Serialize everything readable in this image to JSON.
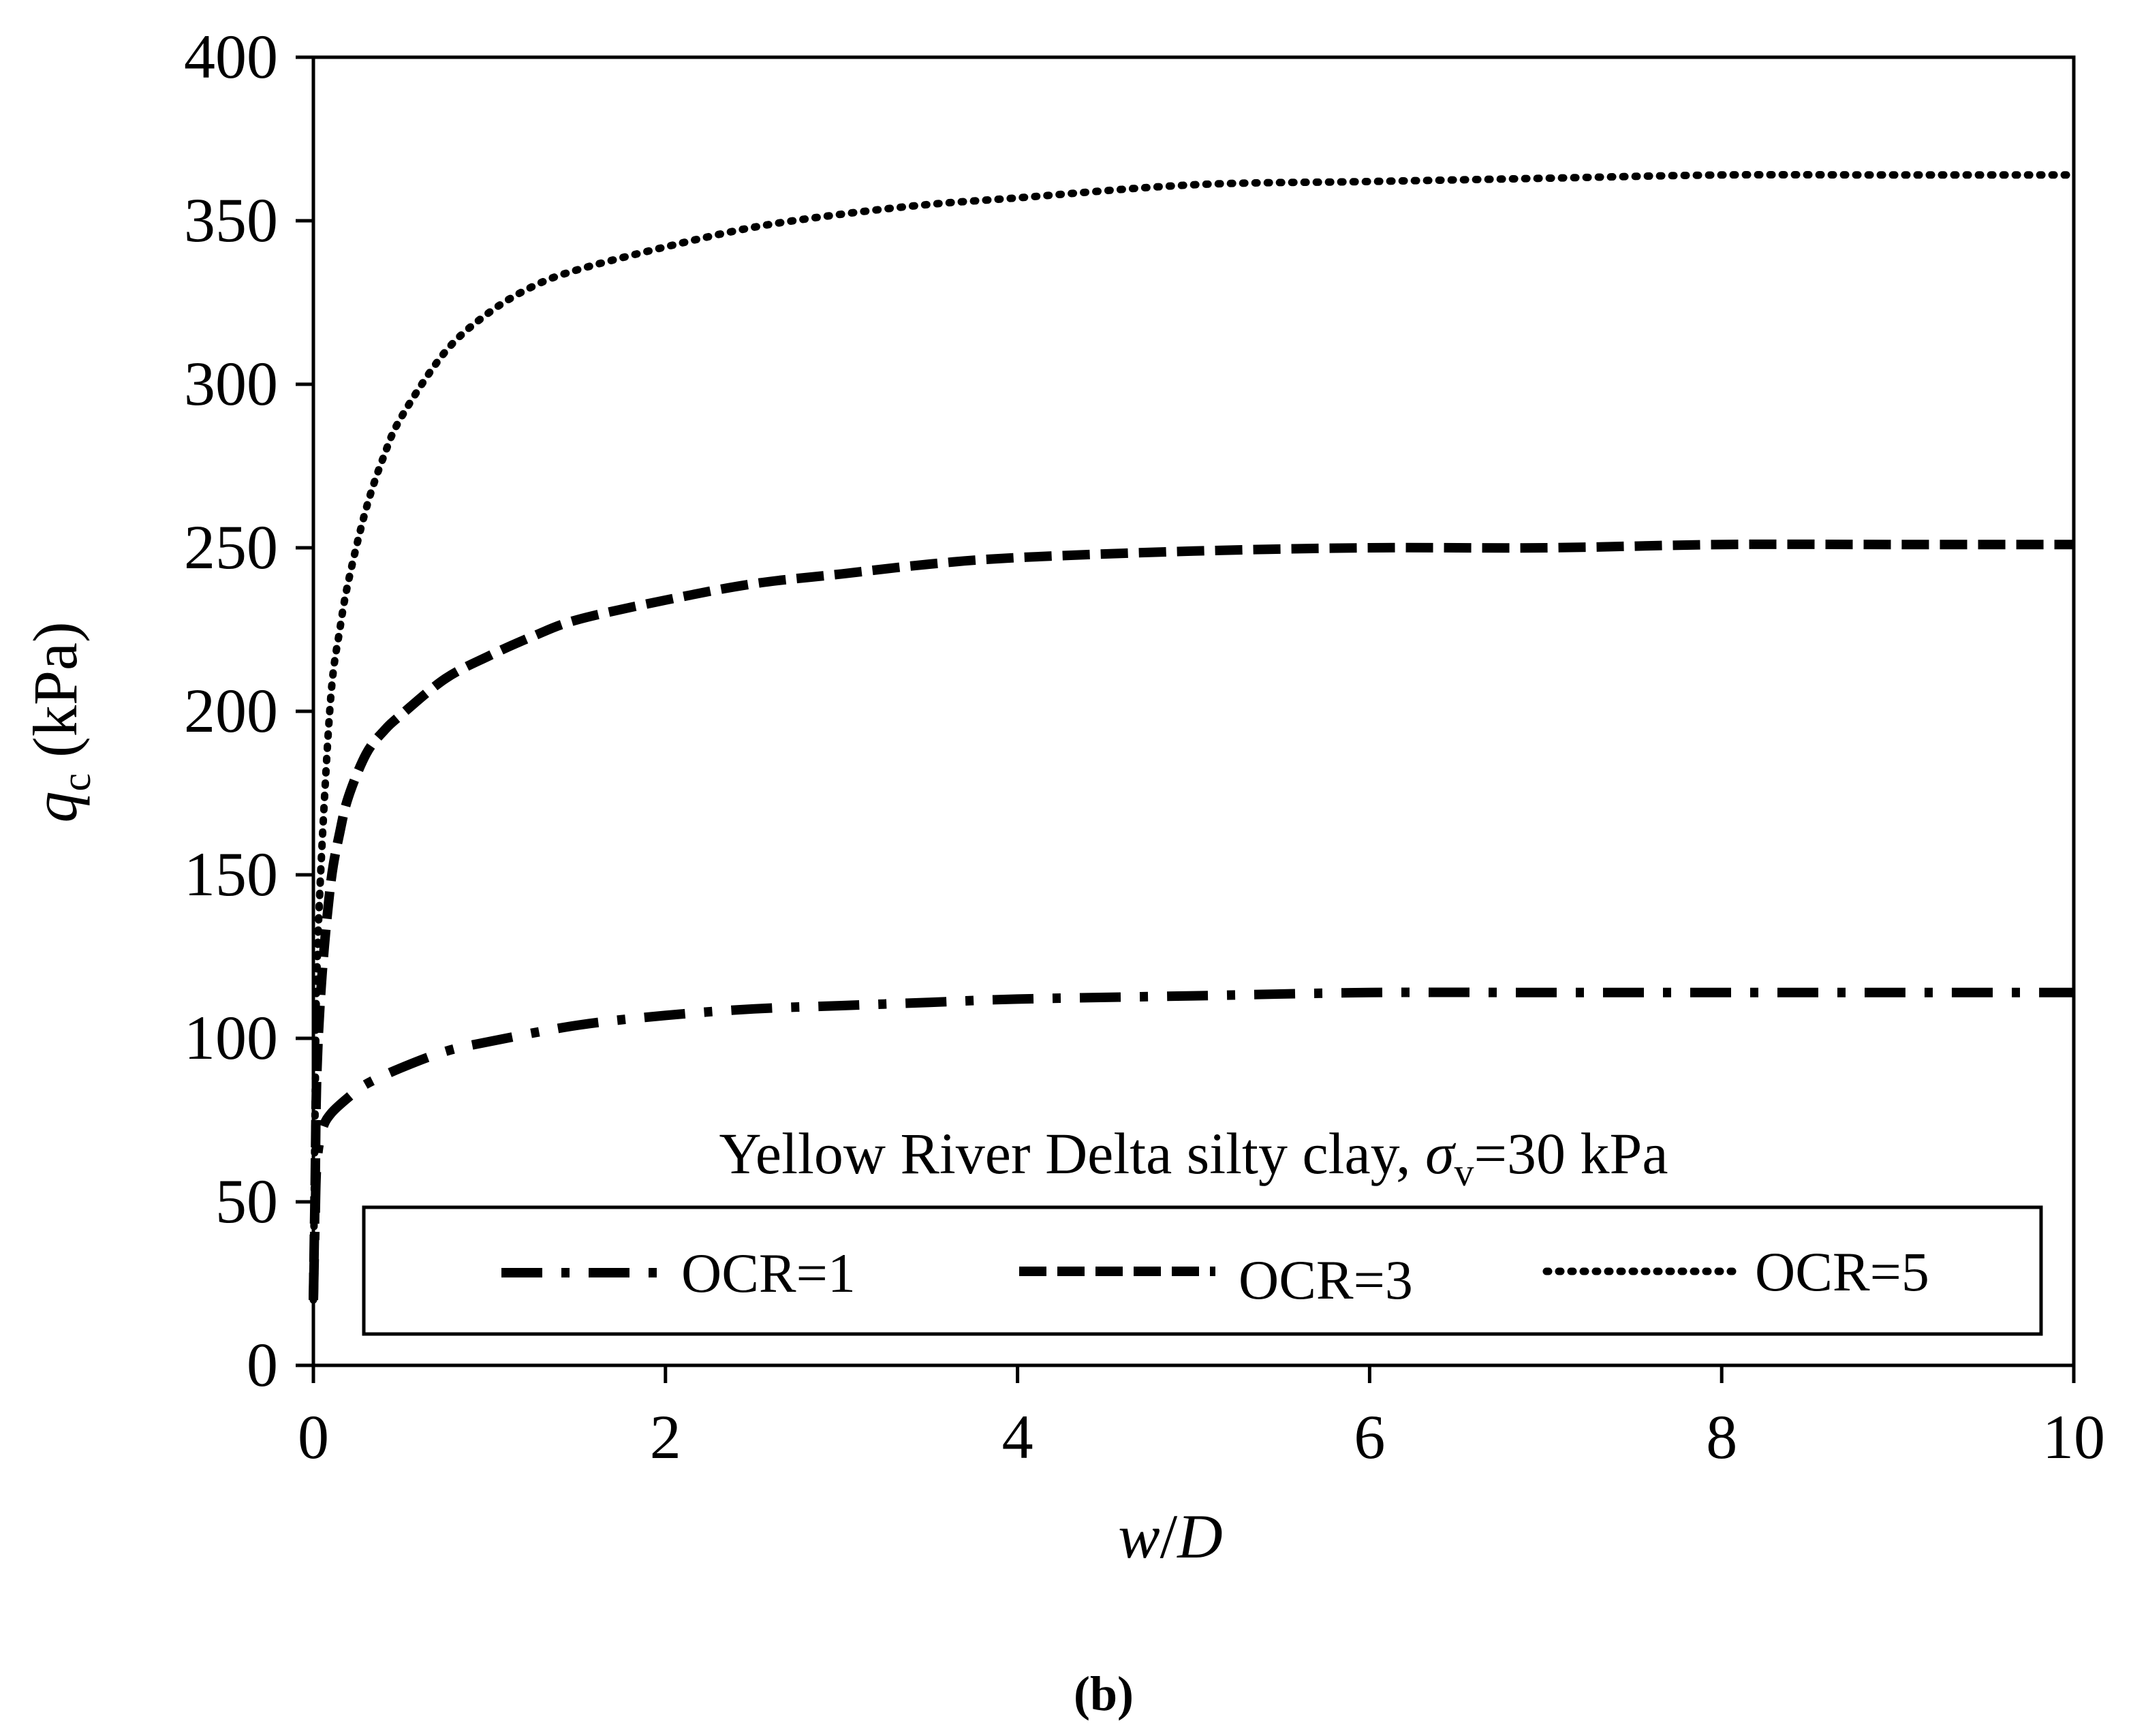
{
  "chart_data": {
    "type": "line",
    "xlabel": {
      "var": "w",
      "sep": "/",
      "den": "D"
    },
    "ylabel": {
      "var": "q",
      "sub": "c",
      "unit": " (kPa)"
    },
    "xlim": [
      0,
      10
    ],
    "ylim": [
      0,
      400
    ],
    "x_ticks": [
      "0",
      "2",
      "4",
      "6",
      "8",
      "10"
    ],
    "y_ticks": [
      "0",
      "50",
      "100",
      "150",
      "200",
      "250",
      "300",
      "350",
      "400"
    ],
    "annotation": {
      "main": "Yellow River Delta silty clay, ",
      "sym": "σ",
      "sub": "v",
      "rest": "=30 kPa"
    },
    "legend": [
      "OCR=1",
      "OCR=3",
      "OCR=5"
    ],
    "caption": "(b)",
    "series": [
      {
        "name": "OCR=1",
        "style": "dash-dot",
        "x": [
          0,
          0.01,
          0.02,
          0.05,
          0.1,
          0.2,
          0.3,
          0.5,
          0.75,
          1,
          1.5,
          2,
          2.5,
          3,
          3.5,
          4,
          5,
          6,
          7,
          8,
          9,
          10
        ],
        "y": [
          20,
          45,
          62,
          72,
          77,
          82,
          86,
          91,
          96,
          99,
          104,
          107,
          109,
          110,
          111,
          112,
          113,
          114,
          114,
          114,
          114,
          114
        ]
      },
      {
        "name": "OCR=3",
        "style": "dashed",
        "x": [
          0,
          0.01,
          0.02,
          0.05,
          0.1,
          0.15,
          0.2,
          0.3,
          0.4,
          0.5,
          0.75,
          1,
          1.25,
          1.5,
          2,
          2.5,
          3,
          3.5,
          4,
          5,
          6,
          7,
          8,
          9,
          10
        ],
        "y": [
          20,
          55,
          90,
          120,
          148,
          163,
          174,
          187,
          194,
          199,
          210,
          217,
          223,
          228,
          234,
          239,
          242,
          245,
          247,
          249,
          250,
          250,
          251,
          251,
          251
        ]
      },
      {
        "name": "OCR=5",
        "style": "dotted",
        "x": [
          0,
          0.01,
          0.02,
          0.05,
          0.1,
          0.15,
          0.2,
          0.3,
          0.4,
          0.5,
          0.75,
          1,
          1.25,
          1.5,
          2,
          2.5,
          3,
          3.5,
          4,
          5,
          6,
          7,
          8,
          9,
          10
        ],
        "y": [
          20,
          80,
          120,
          160,
          205,
          225,
          240,
          262,
          278,
          290,
          310,
          322,
          330,
          335,
          342,
          348,
          352,
          355,
          357,
          361,
          362,
          363,
          364,
          364,
          364
        ]
      }
    ]
  }
}
